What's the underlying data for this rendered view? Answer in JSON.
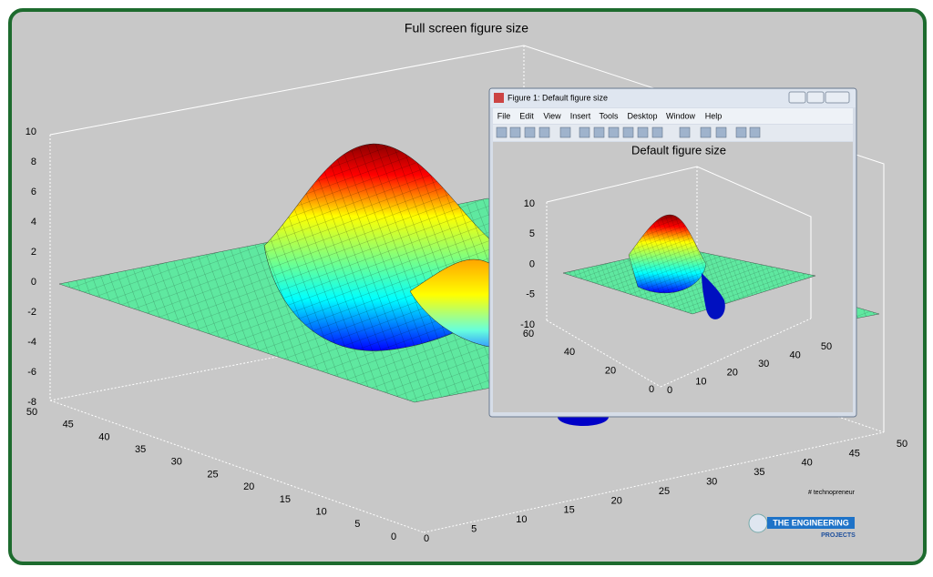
{
  "main": {
    "title": "Full screen figure size",
    "z_ticks": [
      "10",
      "8",
      "6",
      "4",
      "2",
      "0",
      "-2",
      "-4",
      "-6",
      "-8"
    ],
    "y_ticks": [
      "50",
      "45",
      "40",
      "35",
      "30",
      "25",
      "20",
      "15",
      "10",
      "5",
      "0"
    ],
    "x_ticks": [
      "0",
      "5",
      "10",
      "15",
      "20",
      "25",
      "30",
      "35",
      "40",
      "45",
      "50"
    ]
  },
  "window": {
    "title": "Figure 1: Default figure size",
    "menu": [
      "File",
      "Edit",
      "View",
      "Insert",
      "Tools",
      "Desktop",
      "Window",
      "Help"
    ],
    "plot": {
      "title": "Default figure size",
      "z_ticks": [
        "10",
        "5",
        "0",
        "-5",
        "-10"
      ],
      "y_ticks": [
        "60",
        "40",
        "20",
        "0"
      ],
      "x_ticks": [
        "0",
        "10",
        "20",
        "30",
        "40",
        "50"
      ]
    }
  },
  "logo": {
    "tag": "# technopreneur",
    "name": "THE ENGINEERING",
    "sub": "PROJECTS"
  }
}
